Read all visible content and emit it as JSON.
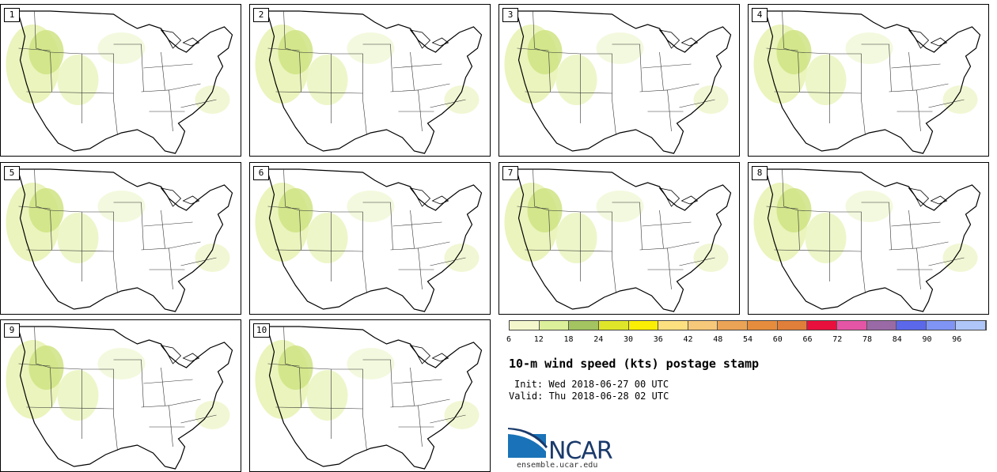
{
  "members": [
    "1",
    "2",
    "3",
    "4",
    "5",
    "6",
    "7",
    "8",
    "9",
    "10"
  ],
  "colorbar": {
    "colors": [
      "#f4f7cc",
      "#dcef9a",
      "#a3c460",
      "#dfe62a",
      "#fbee05",
      "#fcdf7f",
      "#f6c879",
      "#eba355",
      "#e68d3d",
      "#e07f3a",
      "#e8103c",
      "#e455a5",
      "#9a6aa7",
      "#5b68ea",
      "#7f94f4",
      "#afc6f8"
    ],
    "ticks": [
      "6",
      "12",
      "18",
      "24",
      "30",
      "36",
      "42",
      "48",
      "54",
      "60",
      "66",
      "72",
      "78",
      "84",
      "90",
      "96"
    ]
  },
  "title": "10-m wind speed (kts) postage stamp",
  "init_text": "Init: Wed 2018-06-27 00 UTC",
  "valid_text": "Valid: Thu 2018-06-28 02 UTC",
  "logo": {
    "name": "NCAR",
    "url": "ensemble.ucar.edu"
  }
}
